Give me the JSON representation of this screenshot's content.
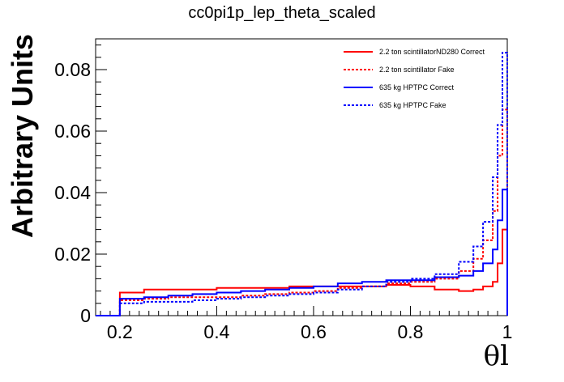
{
  "chart_data": {
    "type": "line",
    "drawstyle": "steps",
    "title": "cc0pi1p_lep_theta_scaled",
    "xlabel": "θl",
    "ylabel": "Arbitrary Units",
    "xlim": [
      0.15,
      1.0
    ],
    "ylim": [
      0,
      0.09
    ],
    "x_ticks": [
      0.2,
      0.4,
      0.6,
      0.8,
      1.0
    ],
    "x_tick_labels": [
      "0.2",
      "0.4",
      "0.6",
      "0.8",
      "1"
    ],
    "y_ticks": [
      0,
      0.02,
      0.04,
      0.06,
      0.08
    ],
    "y_tick_labels": [
      "0",
      "0.02",
      "0.04",
      "0.06",
      "0.08"
    ],
    "grid": false,
    "legend_position": "top-right",
    "x": [
      0.15,
      0.2,
      0.25,
      0.3,
      0.35,
      0.4,
      0.45,
      0.5,
      0.55,
      0.6,
      0.65,
      0.7,
      0.75,
      0.8,
      0.85,
      0.9,
      0.93,
      0.95,
      0.97,
      0.98,
      0.99,
      1.0
    ],
    "series": [
      {
        "name": "2.2 ton scintillatorND280 Correct",
        "color": "#ff0000",
        "dash": "solid",
        "values": [
          0,
          0.0075,
          0.0085,
          0.0085,
          0.0085,
          0.009,
          0.009,
          0.009,
          0.0095,
          0.0095,
          0.0095,
          0.0095,
          0.01,
          0.0095,
          0.0085,
          0.008,
          0.0085,
          0.0095,
          0.011,
          0.017,
          0.028,
          0.028
        ]
      },
      {
        "name": "2.2 ton scintillator Fake",
        "color": "#ff0000",
        "dash": "dashed",
        "values": [
          0,
          0.005,
          0.0055,
          0.006,
          0.006,
          0.006,
          0.0065,
          0.007,
          0.0075,
          0.008,
          0.009,
          0.0095,
          0.0105,
          0.011,
          0.012,
          0.0145,
          0.0185,
          0.0245,
          0.034,
          0.052,
          0.067,
          0.067
        ]
      },
      {
        "name": "635 kg HPTPC Correct",
        "color": "#0000ff",
        "dash": "solid",
        "values": [
          0,
          0.0055,
          0.006,
          0.0065,
          0.007,
          0.0075,
          0.008,
          0.0085,
          0.009,
          0.0095,
          0.0105,
          0.011,
          0.0115,
          0.0115,
          0.0125,
          0.013,
          0.0145,
          0.017,
          0.0215,
          0.031,
          0.041,
          0.041
        ]
      },
      {
        "name": "635 kg HPTPC Fake",
        "color": "#0000ff",
        "dash": "dashed",
        "values": [
          0,
          0.004,
          0.0045,
          0.0045,
          0.005,
          0.0055,
          0.006,
          0.0065,
          0.007,
          0.0075,
          0.0085,
          0.0095,
          0.011,
          0.012,
          0.0135,
          0.0175,
          0.0225,
          0.0305,
          0.045,
          0.062,
          0.0855,
          0.0855
        ]
      }
    ]
  }
}
